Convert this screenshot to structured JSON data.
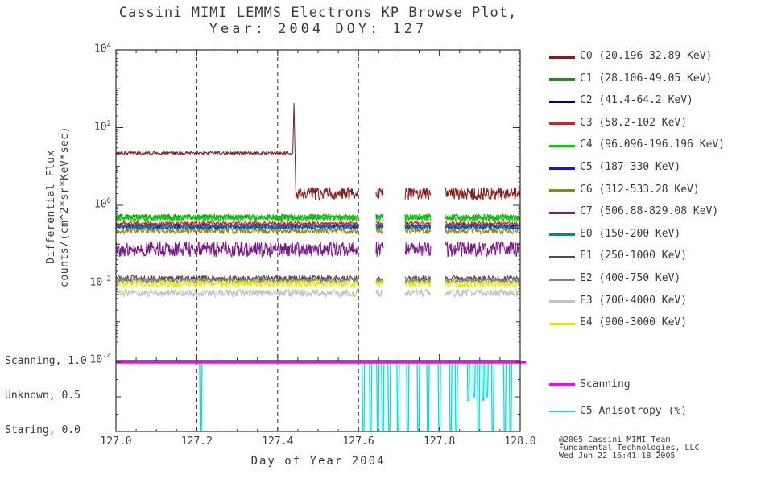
{
  "title": {
    "line1": "Cassini MIMI LEMMS Electrons KP Browse Plot,",
    "line2": "Year: 2004 DOY: 127"
  },
  "axes": {
    "x_label": "Day of Year 2004",
    "y_label_line1": "Differential Flux",
    "y_label_line2": "counts/(cm^2*sr*KeV*sec)",
    "x_tick_values": [
      127.0,
      127.2,
      127.4,
      127.6,
      127.8,
      128.0
    ],
    "x_tick_labels": [
      "127.0",
      "127.2",
      "127.4",
      "127.6",
      "127.8",
      "128.0"
    ],
    "y_tick_exponents": [
      4,
      2,
      0,
      -2,
      -4
    ]
  },
  "footer": {
    "line1": "@2005 Cassini MIMI Team",
    "line2": "Fundamental Technologies, LLC",
    "line3": "Wed Jun 22 16:41:18 2005"
  },
  "chart_data": {
    "type": "line",
    "title": "Cassini MIMI LEMMS Electrons KP Browse Plot, Year: 2004 DOY: 127",
    "x_label": "Day of Year 2004",
    "y_label": "Differential Flux counts/(cm^2*sr*KeV*sec)",
    "x_range": [
      127.0,
      128.0
    ],
    "y_scale": "log10",
    "y_range": [
      0.0001,
      10000
    ],
    "x_major_ticks": [
      127.0,
      127.2,
      127.4,
      127.6,
      127.8,
      128.0
    ],
    "data_gaps_x": [
      [
        127.598,
        127.643
      ],
      [
        127.662,
        127.714
      ],
      [
        127.779,
        127.813
      ]
    ],
    "dashed_guides_x": [
      127.2,
      127.4,
      127.6
    ],
    "flux_series": [
      {
        "name": "C0",
        "label": "C0 (20.196-32.89 KeV)",
        "color": "#8b1a1a",
        "profile": [
          {
            "x0": 127.0,
            "x1": 127.437,
            "level": 22,
            "noise_dec": 0.04
          },
          {
            "x0": 127.444,
            "x1": 128.0,
            "level": 2.0,
            "noise_dec": 0.16
          }
        ],
        "spike": {
          "x": 127.4405,
          "peak": 430,
          "base_before": 22,
          "base_after": 2.0
        }
      },
      {
        "name": "C1",
        "label": "C1 (28.106-49.05 KeV)",
        "color": "#228b22",
        "profile": [
          {
            "x0": 127.0,
            "x1": 128.0,
            "level": 0.5,
            "noise_dec": 0.07
          }
        ]
      },
      {
        "name": "C2",
        "label": "C2 (41.4-64.2 KeV)",
        "color": "#00008b",
        "profile": [
          {
            "x0": 127.0,
            "x1": 128.0,
            "level": 0.3,
            "noise_dec": 0.05
          }
        ]
      },
      {
        "name": "C3",
        "label": "C3 (58.2-102 KeV)",
        "color": "#e31a1a",
        "profile": [
          {
            "x0": 127.0,
            "x1": 128.0,
            "level": 0.34,
            "noise_dec": 0.05
          }
        ]
      },
      {
        "name": "C4",
        "label": "C4 (96.096-196.196 KeV)",
        "color": "#00d400",
        "profile": [
          {
            "x0": 127.0,
            "x1": 128.0,
            "level": 0.47,
            "noise_dec": 0.09
          }
        ]
      },
      {
        "name": "C5",
        "label": "C5 (187-330 KeV)",
        "color": "#1414e6",
        "profile": [
          {
            "x0": 127.0,
            "x1": 128.0,
            "level": 0.27,
            "noise_dec": 0.05
          }
        ]
      },
      {
        "name": "C6",
        "label": "C6 (312-533.28 KeV)",
        "color": "#8b8b14",
        "profile": [
          {
            "x0": 127.0,
            "x1": 128.0,
            "level": 0.22,
            "noise_dec": 0.08
          }
        ]
      },
      {
        "name": "C7",
        "label": "C7 (506.88-829.08 KeV)",
        "color": "#7d1a8b",
        "profile": [
          {
            "x0": 127.0,
            "x1": 128.0,
            "level": 0.075,
            "noise_dec": 0.2
          }
        ]
      },
      {
        "name": "E0",
        "label": "E0 (150-200 KeV)",
        "color": "#008b8b",
        "profile": [
          {
            "x0": 127.0,
            "x1": 128.0,
            "level": 0.29,
            "noise_dec": 0.04
          }
        ]
      },
      {
        "name": "E1",
        "label": "E1 (250-1000 KeV)",
        "color": "#4d4d4d",
        "profile": [
          {
            "x0": 127.0,
            "x1": 128.0,
            "level": 0.013,
            "noise_dec": 0.08
          }
        ]
      },
      {
        "name": "E2",
        "label": "E2 (400-750 KeV)",
        "color": "#828282",
        "profile": [
          {
            "x0": 127.0,
            "x1": 128.0,
            "level": 0.0115,
            "noise_dec": 0.07
          }
        ]
      },
      {
        "name": "E3",
        "label": "E3 (700-4000 KeV)",
        "color": "#c3c3c3",
        "profile": [
          {
            "x0": 127.0,
            "x1": 128.0,
            "level": 0.0055,
            "noise_dec": 0.1
          }
        ]
      },
      {
        "name": "E4",
        "label": "E4 (900-3000 KeV)",
        "color": "#e8e800",
        "profile": [
          {
            "x0": 127.0,
            "x1": 128.0,
            "level": 0.0095,
            "noise_dec": 0.09
          }
        ]
      }
    ],
    "mode_panel": {
      "y_range": [
        0.0,
        1.0
      ],
      "y_ticks": [
        {
          "label": "Scanning, 1.0",
          "value": 1.0
        },
        {
          "label": "Unknown, 0.5",
          "value": 0.5
        },
        {
          "label": "Staring, 0.0",
          "value": 0.0
        }
      ]
    },
    "scanning_line": {
      "name": "Scanning",
      "color": "#ff00ff",
      "value": 1.0
    },
    "anisotropy": {
      "name": "C5 Anisotropy (%)",
      "color": "#00e0e0",
      "base_value": 1.0,
      "dips": [
        {
          "x": 127.21,
          "min": 0.0
        },
        {
          "x": 127.612,
          "min": 0.0
        },
        {
          "x": 127.63,
          "min": 0.0
        },
        {
          "x": 127.648,
          "min": 0.0
        },
        {
          "x": 127.66,
          "min": 0.0
        },
        {
          "x": 127.676,
          "min": 0.0
        },
        {
          "x": 127.698,
          "min": 0.0
        },
        {
          "x": 127.722,
          "min": 0.0
        },
        {
          "x": 127.748,
          "min": 0.0
        },
        {
          "x": 127.772,
          "min": 0.0
        },
        {
          "x": 127.8,
          "min": 0.0
        },
        {
          "x": 127.828,
          "min": 0.0
        },
        {
          "x": 127.842,
          "min": 0.0
        },
        {
          "x": 127.872,
          "min": 0.45
        },
        {
          "x": 127.886,
          "min": 0.5
        },
        {
          "x": 127.897,
          "min": 0.0
        },
        {
          "x": 127.908,
          "min": 0.45
        },
        {
          "x": 127.918,
          "min": 0.5
        },
        {
          "x": 127.932,
          "min": 0.0
        },
        {
          "x": 127.962,
          "min": 0.0
        },
        {
          "x": 127.976,
          "min": 0.0
        }
      ]
    }
  }
}
